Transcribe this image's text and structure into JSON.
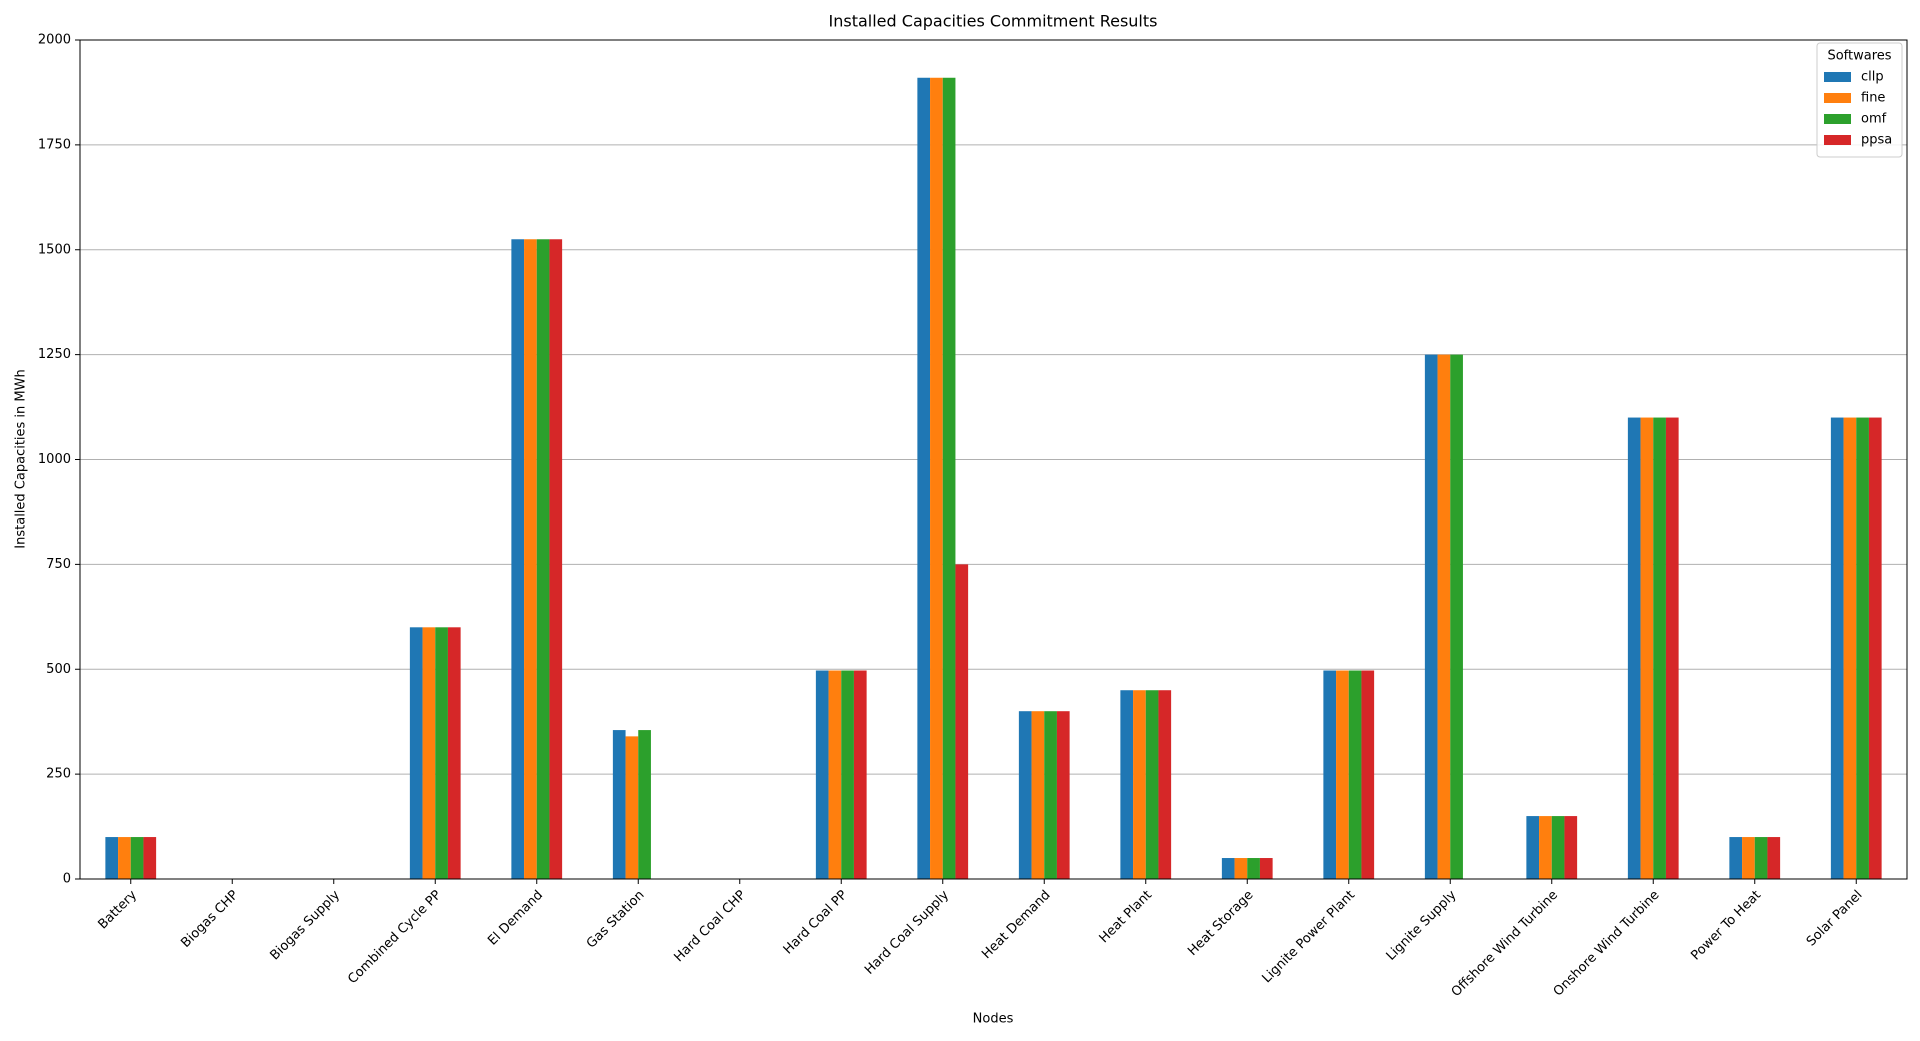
{
  "chart_data": {
    "type": "bar",
    "title": "Installed Capacities Commitment Results",
    "x_label": "Nodes",
    "y_label": "Installed Capacities in MWh",
    "categories": [
      "Battery",
      "Biogas CHP",
      "Biogas Supply",
      "Combined Cycle PP",
      "El Demand",
      "Gas Station",
      "Hard Coal CHP",
      "Hard Coal PP",
      "Hard Coal Supply",
      "Heat Demand",
      "Heat Plant",
      "Heat Storage",
      "Lignite Power Plant",
      "Lignite Supply",
      "Offshore Wind Turbine",
      "Onshore Wind Turbine",
      "Power To Heat",
      "Solar Panel"
    ],
    "series": [
      {
        "name": "cllp",
        "color": "#1f77b4",
        "values": [
          100,
          0,
          0,
          600,
          1525,
          355,
          0,
          497,
          1910,
          400,
          450,
          50,
          497,
          1250,
          150,
          1100,
          100,
          1100
        ]
      },
      {
        "name": "fine",
        "color": "#ff7f0e",
        "values": [
          100,
          0,
          0,
          600,
          1525,
          340,
          0,
          497,
          1910,
          400,
          450,
          50,
          497,
          1250,
          150,
          1100,
          100,
          1100
        ]
      },
      {
        "name": "omf",
        "color": "#2ca02c",
        "values": [
          100,
          0,
          0,
          600,
          1525,
          355,
          0,
          497,
          1910,
          400,
          450,
          50,
          497,
          1250,
          150,
          1100,
          100,
          1100
        ]
      },
      {
        "name": "ppsa",
        "color": "#d62728",
        "values": [
          100,
          0,
          0,
          600,
          1525,
          0,
          0,
          497,
          750,
          400,
          450,
          50,
          497,
          0,
          150,
          1100,
          100,
          1100
        ]
      }
    ],
    "legend_title": "Softwares",
    "legend": "upper right",
    "ylim": [
      0,
      2000
    ],
    "yticks": [
      0,
      250,
      500,
      750,
      1000,
      1250,
      1500,
      1750,
      2000
    ],
    "grid": true
  }
}
